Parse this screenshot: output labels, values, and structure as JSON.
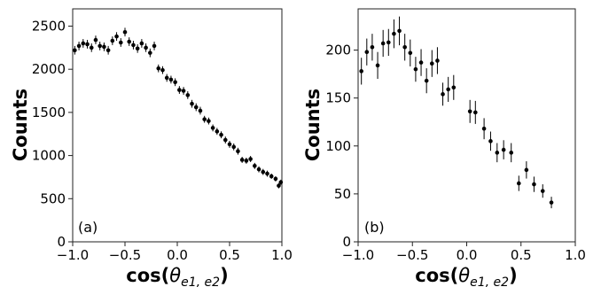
{
  "chart_data": [
    {
      "type": "scatter",
      "panel_label": "(a)",
      "ylabel": "Counts",
      "xlabel_prefix": "cos(",
      "xlabel_theta": "θ",
      "xlabel_sub": "e1, e2",
      "xlabel_suffix": ")",
      "xlim": [
        -1.0,
        1.0
      ],
      "ylim": [
        0,
        2700
      ],
      "xticks": [
        "-1.0",
        "-0.5",
        "0.0",
        "0.5",
        "1.0"
      ],
      "xtick_values": [
        -1.0,
        -0.5,
        0.0,
        0.5,
        1.0
      ],
      "yticks": [
        "0",
        "500",
        "1000",
        "1500",
        "2000",
        "2500"
      ],
      "ytick_values": [
        0,
        500,
        1000,
        1500,
        2000,
        2500
      ],
      "error_bars": true,
      "points": [
        {
          "x": -0.98,
          "y": 2220,
          "err": 50
        },
        {
          "x": -0.94,
          "y": 2270,
          "err": 50
        },
        {
          "x": -0.9,
          "y": 2300,
          "err": 50
        },
        {
          "x": -0.86,
          "y": 2290,
          "err": 50
        },
        {
          "x": -0.82,
          "y": 2250,
          "err": 50
        },
        {
          "x": -0.78,
          "y": 2340,
          "err": 50
        },
        {
          "x": -0.74,
          "y": 2270,
          "err": 50
        },
        {
          "x": -0.7,
          "y": 2260,
          "err": 50
        },
        {
          "x": -0.66,
          "y": 2220,
          "err": 50
        },
        {
          "x": -0.62,
          "y": 2330,
          "err": 50
        },
        {
          "x": -0.58,
          "y": 2380,
          "err": 50
        },
        {
          "x": -0.54,
          "y": 2310,
          "err": 50
        },
        {
          "x": -0.5,
          "y": 2430,
          "err": 50
        },
        {
          "x": -0.46,
          "y": 2320,
          "err": 50
        },
        {
          "x": -0.42,
          "y": 2280,
          "err": 50
        },
        {
          "x": -0.38,
          "y": 2240,
          "err": 50
        },
        {
          "x": -0.34,
          "y": 2300,
          "err": 50
        },
        {
          "x": -0.3,
          "y": 2250,
          "err": 50
        },
        {
          "x": -0.26,
          "y": 2190,
          "err": 50
        },
        {
          "x": -0.22,
          "y": 2270,
          "err": 50
        },
        {
          "x": -0.18,
          "y": 2010,
          "err": 45
        },
        {
          "x": -0.14,
          "y": 1990,
          "err": 45
        },
        {
          "x": -0.1,
          "y": 1900,
          "err": 45
        },
        {
          "x": -0.06,
          "y": 1880,
          "err": 45
        },
        {
          "x": -0.02,
          "y": 1850,
          "err": 45
        },
        {
          "x": 0.02,
          "y": 1760,
          "err": 45
        },
        {
          "x": 0.06,
          "y": 1750,
          "err": 45
        },
        {
          "x": 0.1,
          "y": 1700,
          "err": 45
        },
        {
          "x": 0.14,
          "y": 1600,
          "err": 45
        },
        {
          "x": 0.18,
          "y": 1560,
          "err": 45
        },
        {
          "x": 0.22,
          "y": 1520,
          "err": 45
        },
        {
          "x": 0.26,
          "y": 1420,
          "err": 40
        },
        {
          "x": 0.3,
          "y": 1400,
          "err": 40
        },
        {
          "x": 0.34,
          "y": 1320,
          "err": 40
        },
        {
          "x": 0.38,
          "y": 1280,
          "err": 40
        },
        {
          "x": 0.42,
          "y": 1240,
          "err": 40
        },
        {
          "x": 0.46,
          "y": 1180,
          "err": 40
        },
        {
          "x": 0.5,
          "y": 1130,
          "err": 40
        },
        {
          "x": 0.54,
          "y": 1100,
          "err": 40
        },
        {
          "x": 0.58,
          "y": 1050,
          "err": 40
        },
        {
          "x": 0.62,
          "y": 950,
          "err": 35
        },
        {
          "x": 0.66,
          "y": 940,
          "err": 35
        },
        {
          "x": 0.7,
          "y": 960,
          "err": 35
        },
        {
          "x": 0.74,
          "y": 880,
          "err": 35
        },
        {
          "x": 0.78,
          "y": 840,
          "err": 35
        },
        {
          "x": 0.82,
          "y": 810,
          "err": 35
        },
        {
          "x": 0.86,
          "y": 790,
          "err": 35
        },
        {
          "x": 0.9,
          "y": 760,
          "err": 30
        },
        {
          "x": 0.94,
          "y": 730,
          "err": 30
        },
        {
          "x": 0.97,
          "y": 650,
          "err": 30
        },
        {
          "x": 0.99,
          "y": 690,
          "err": 30
        }
      ]
    },
    {
      "type": "scatter",
      "panel_label": "(b)",
      "ylabel": "Counts",
      "xlabel_prefix": "cos(",
      "xlabel_theta": "θ",
      "xlabel_sub": "e1, e2",
      "xlabel_suffix": ")",
      "xlim": [
        -1.0,
        1.0
      ],
      "ylim": [
        0,
        243
      ],
      "xticks": [
        "-1.0",
        "-0.5",
        "0.0",
        "0.5",
        "1.0"
      ],
      "xtick_values": [
        -1.0,
        -0.5,
        0.0,
        0.5,
        1.0
      ],
      "yticks": [
        "0",
        "50",
        "100",
        "150",
        "200"
      ],
      "ytick_values": [
        0,
        50,
        100,
        150,
        200
      ],
      "error_bars": true,
      "points": [
        {
          "x": -0.97,
          "y": 178,
          "err": 14
        },
        {
          "x": -0.92,
          "y": 198,
          "err": 14
        },
        {
          "x": -0.87,
          "y": 203,
          "err": 14
        },
        {
          "x": -0.82,
          "y": 184,
          "err": 14
        },
        {
          "x": -0.77,
          "y": 207,
          "err": 14
        },
        {
          "x": -0.72,
          "y": 208,
          "err": 14
        },
        {
          "x": -0.67,
          "y": 217,
          "err": 15
        },
        {
          "x": -0.62,
          "y": 220,
          "err": 15
        },
        {
          "x": -0.57,
          "y": 203,
          "err": 14
        },
        {
          "x": -0.52,
          "y": 197,
          "err": 14
        },
        {
          "x": -0.47,
          "y": 180,
          "err": 13
        },
        {
          "x": -0.42,
          "y": 187,
          "err": 14
        },
        {
          "x": -0.37,
          "y": 168,
          "err": 13
        },
        {
          "x": -0.32,
          "y": 186,
          "err": 14
        },
        {
          "x": -0.27,
          "y": 189,
          "err": 14
        },
        {
          "x": -0.22,
          "y": 154,
          "err": 12
        },
        {
          "x": -0.17,
          "y": 159,
          "err": 13
        },
        {
          "x": -0.12,
          "y": 161,
          "err": 13
        },
        {
          "x": 0.03,
          "y": 136,
          "err": 12
        },
        {
          "x": 0.08,
          "y": 135,
          "err": 12
        },
        {
          "x": 0.16,
          "y": 118,
          "err": 11
        },
        {
          "x": 0.22,
          "y": 105,
          "err": 10
        },
        {
          "x": 0.28,
          "y": 93,
          "err": 10
        },
        {
          "x": 0.34,
          "y": 96,
          "err": 10
        },
        {
          "x": 0.41,
          "y": 93,
          "err": 10
        },
        {
          "x": 0.48,
          "y": 61,
          "err": 8
        },
        {
          "x": 0.55,
          "y": 75,
          "err": 9
        },
        {
          "x": 0.62,
          "y": 60,
          "err": 8
        },
        {
          "x": 0.7,
          "y": 53,
          "err": 7
        },
        {
          "x": 0.78,
          "y": 41,
          "err": 6
        }
      ]
    }
  ]
}
